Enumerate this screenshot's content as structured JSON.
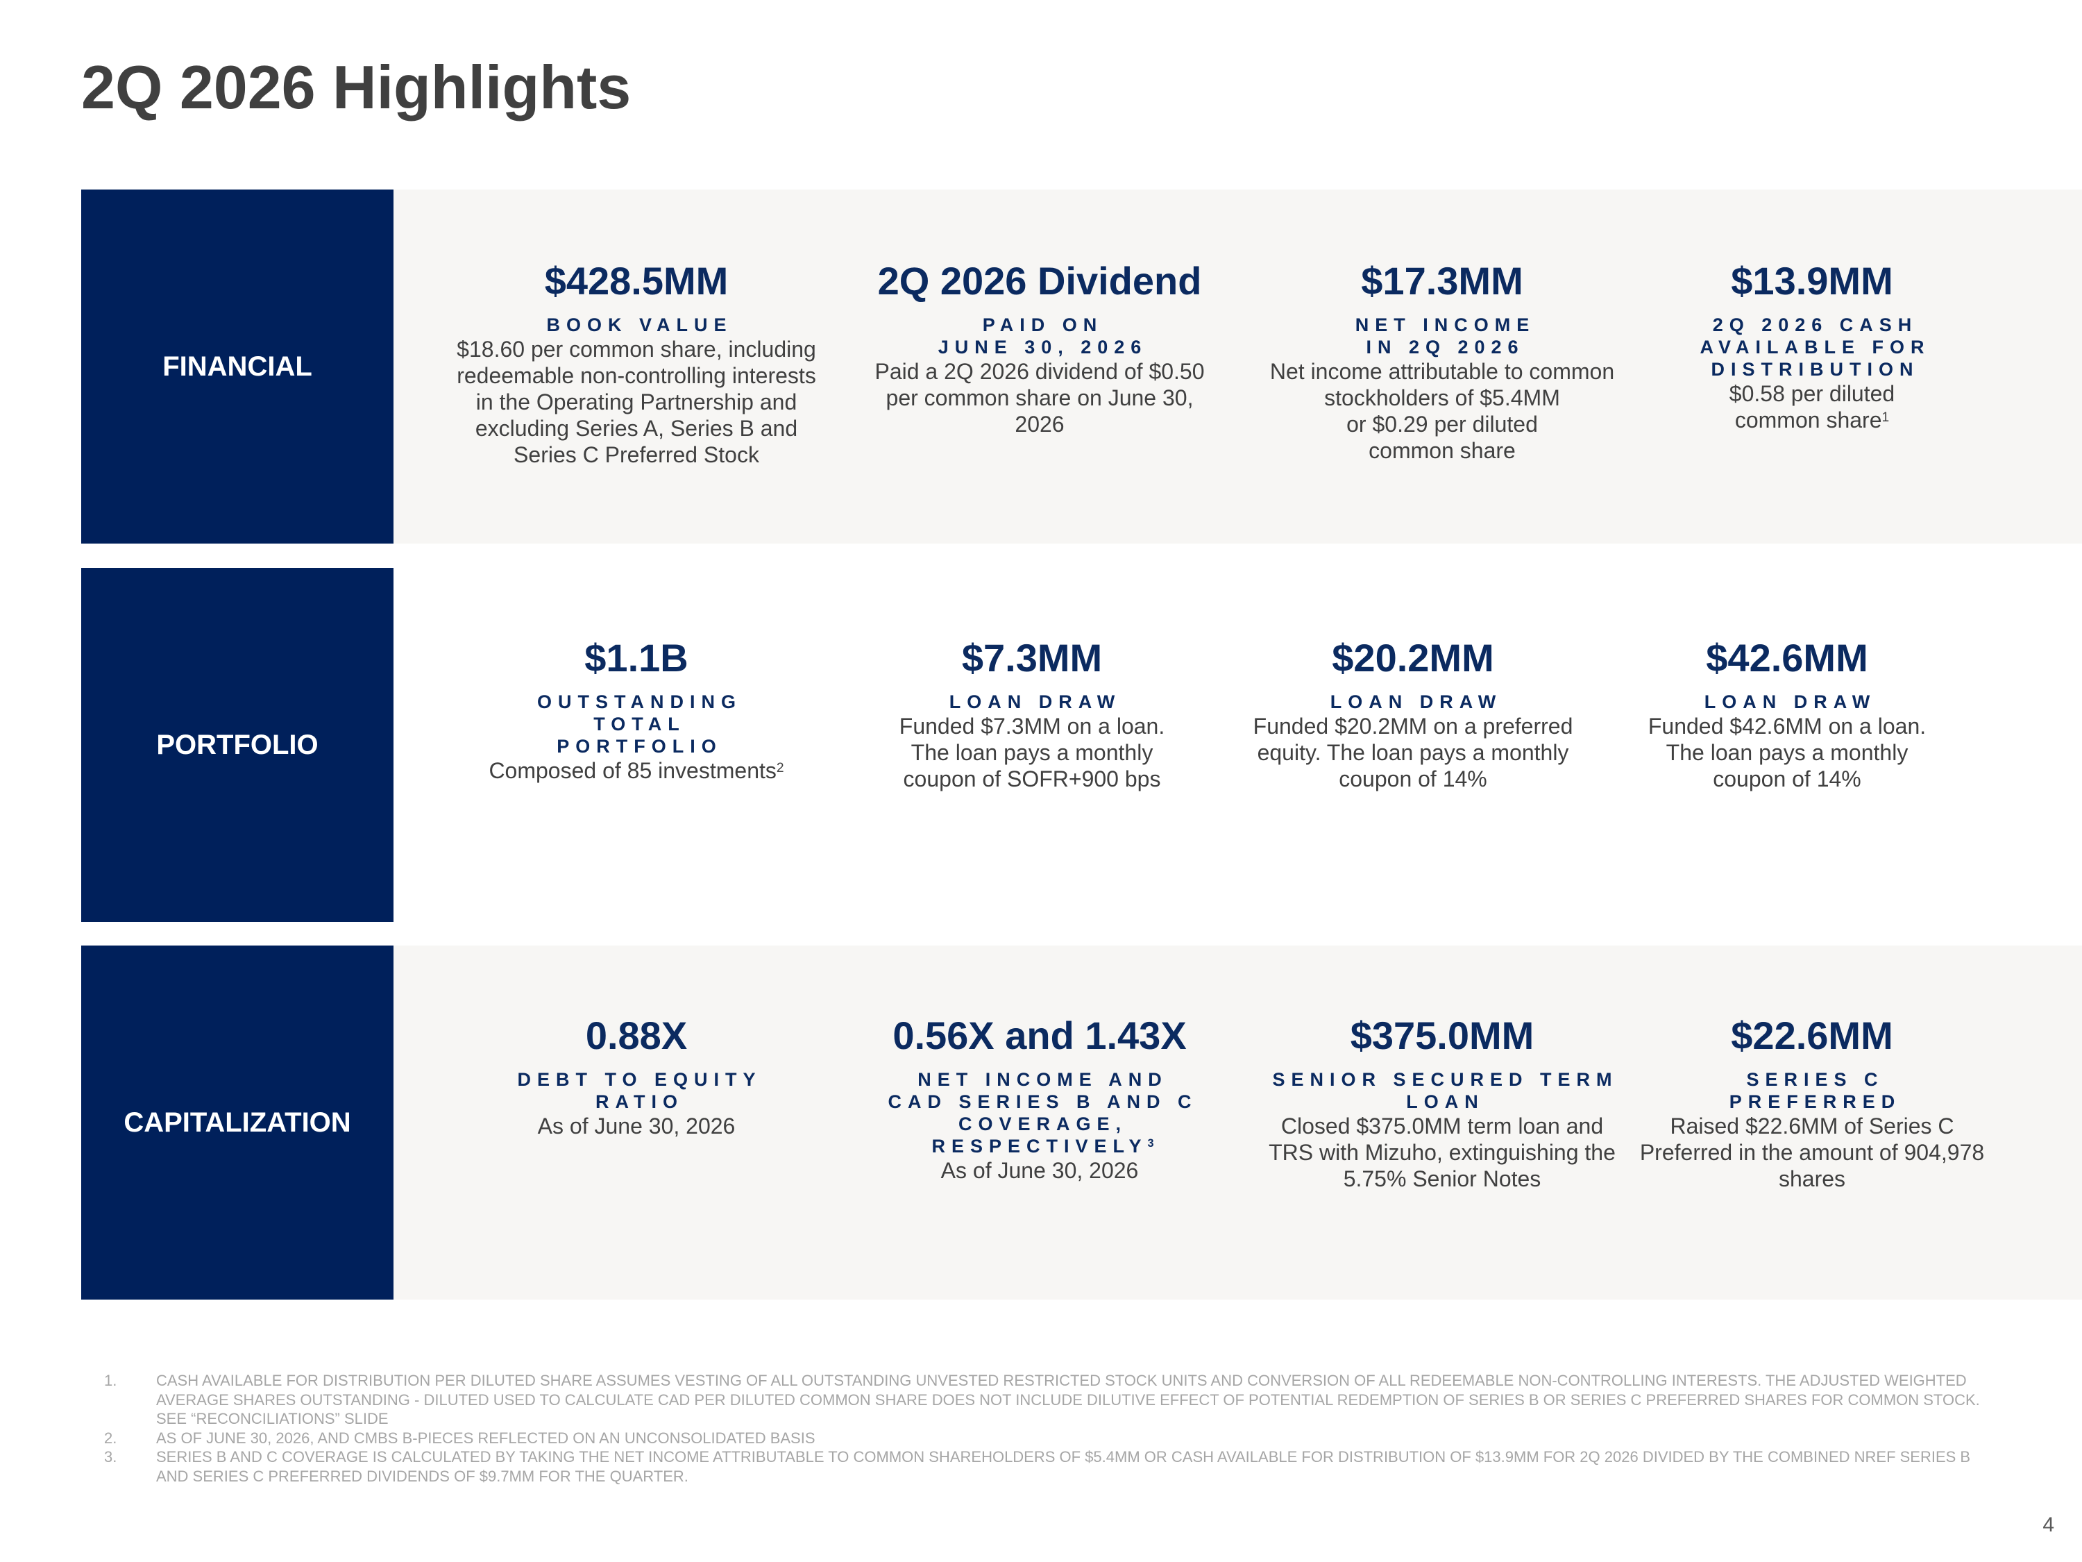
{
  "title": "2Q 2026 Highlights",
  "sections": [
    {
      "label": "FINANCIAL",
      "items": [
        {
          "metric": "$428.5MM",
          "caption": "BOOK VALUE",
          "desc": "$18.60 per common share, including\nredeemable non-controlling interests\nin the Operating Partnership and\nexcluding Series A, Series B and\nSeries C Preferred Stock"
        },
        {
          "metric": "2Q 2026 Dividend",
          "caption": "PAID ON\nJUNE 30, 2026",
          "desc": "Paid a 2Q 2026 dividend of $0.50\nper common share on June 30,\n2026"
        },
        {
          "metric": "$17.3MM",
          "caption": "NET INCOME\nIN 2Q 2026",
          "desc": "Net income attributable to common\nstockholders of $5.4MM\nor $0.29 per diluted\ncommon share"
        },
        {
          "metric": "$13.9MM",
          "caption": "2Q 2026 CASH\nAVAILABLE FOR\nDISTRIBUTION",
          "desc": "$0.58 per diluted\ncommon share",
          "desc_sup": "1"
        }
      ]
    },
    {
      "label": "PORTFOLIO",
      "items": [
        {
          "metric": "$1.1B",
          "caption": "OUTSTANDING\nTOTAL\nPORTFOLIO",
          "desc": "Composed of 85 investments",
          "desc_sup": "2"
        },
        {
          "metric": "$7.3MM",
          "caption": "LOAN DRAW",
          "desc": "Funded $7.3MM on a loan.\nThe loan pays a monthly\ncoupon of SOFR+900 bps"
        },
        {
          "metric": "$20.2MM",
          "caption": "LOAN DRAW",
          "desc": "Funded $20.2MM on a preferred\nequity. The loan pays a monthly\ncoupon of 14%"
        },
        {
          "metric": "$42.6MM",
          "caption": "LOAN DRAW",
          "desc": "Funded $42.6MM on a loan.\nThe loan pays a monthly\ncoupon of 14%"
        }
      ]
    },
    {
      "label": "CAPITALIZATION",
      "items": [
        {
          "metric": "0.88X",
          "caption": "DEBT TO EQUITY\nRATIO",
          "desc": "As of June 30, 2026"
        },
        {
          "metric": "0.56X and 1.43X",
          "caption": "NET INCOME AND\nCAD SERIES B AND C\nCOVERAGE,\nRESPECTIVELY",
          "caption_sup": "3",
          "desc": "As of June 30, 2026"
        },
        {
          "metric": "$375.0MM",
          "caption": "SENIOR SECURED TERM\nLOAN",
          "desc": "Closed $375.0MM term loan and\nTRS with Mizuho, extinguishing the\n5.75% Senior Notes"
        },
        {
          "metric": "$22.6MM",
          "caption": "SERIES C\nPREFERRED",
          "desc": "Raised $22.6MM of Series C\nPreferred in the amount of 904,978\nshares"
        }
      ]
    }
  ],
  "footnotes": [
    {
      "num": "1.",
      "text": "CASH AVAILABLE FOR DISTRIBUTION PER DILUTED SHARE ASSUMES VESTING OF ALL OUTSTANDING UNVESTED RESTRICTED STOCK UNITS AND CONVERSION OF ALL REDEEMABLE NON-CONTROLLING INTERESTS. THE ADJUSTED WEIGHTED AVERAGE SHARES OUTSTANDING - DILUTED USED TO CALCULATE CAD PER DILUTED COMMON SHARE DOES NOT INCLUDE DILUTIVE EFFECT OF POTENTIAL REDEMPTION OF SERIES B OR SERIES C PREFERRED SHARES FOR COMMON STOCK. SEE “RECONCILIATIONS” SLIDE"
    },
    {
      "num": "2.",
      "text": "AS OF JUNE 30, 2026, AND CMBS B-PIECES REFLECTED ON AN UNCONSOLIDATED BASIS"
    },
    {
      "num": "3.",
      "text": "SERIES B AND C COVERAGE IS CALCULATED BY TAKING THE NET INCOME ATTRIBUTABLE TO COMMON SHAREHOLDERS OF $5.4MM OR CASH AVAILABLE FOR DISTRIBUTION OF $13.9MM FOR 2Q 2026 DIVIDED BY THE COMBINED NREF SERIES B AND SERIES C PREFERRED DIVIDENDS OF $9.7MM FOR THE QUARTER."
    }
  ],
  "page_number": "4"
}
